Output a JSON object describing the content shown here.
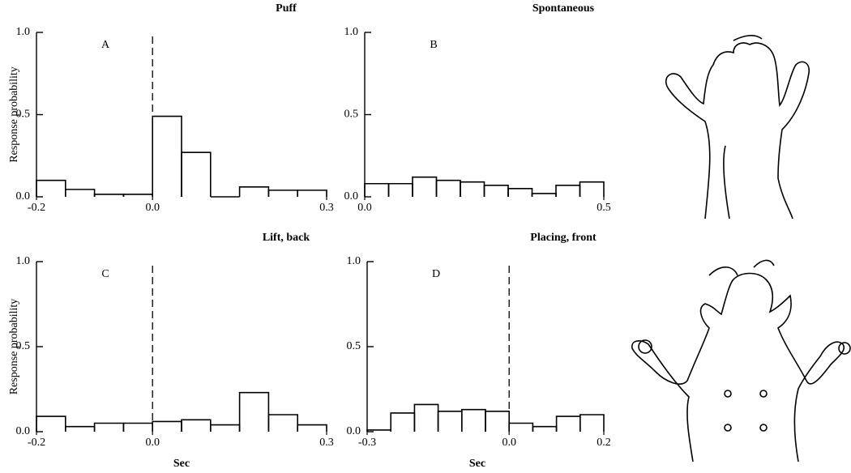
{
  "chart_data": [
    {
      "type": "histogram",
      "title": "Puff",
      "label": "A",
      "ylabel": "Response probability",
      "bins": [
        -0.2,
        -0.15,
        -0.1,
        -0.05,
        0,
        0.05,
        0.1,
        0.15,
        0.2,
        0.25,
        0.3
      ],
      "values": [
        0.1,
        0.045,
        0.015,
        0.015,
        0.49,
        0.27,
        0,
        0.06,
        0.04,
        0.04
      ],
      "color": "#000000",
      "reference_x": 0,
      "xlim": [
        -0.2,
        0.3
      ],
      "xticks": [
        -0.2,
        {
          "value": 0,
          "label": "0.0"
        },
        0.3
      ],
      "ylim": [
        0,
        1
      ],
      "yticks": [
        {
          "value": 0,
          "label": "0.0"
        },
        0.5,
        {
          "value": 1,
          "label": "1.0"
        }
      ]
    },
    {
      "type": "histogram",
      "title": "Spontaneous",
      "label": "B",
      "bins": [
        0,
        0.05,
        0.1,
        0.15,
        0.2,
        0.25,
        0.3,
        0.35,
        0.4,
        0.45,
        0.5
      ],
      "values": [
        0.08,
        0.08,
        0.12,
        0.1,
        0.09,
        0.07,
        0.05,
        0.02,
        0.07,
        0.09
      ],
      "color": "#000000",
      "xlim": [
        0,
        0.5
      ],
      "xticks": [
        {
          "value": 0,
          "label": "0.0"
        },
        0.5
      ],
      "ylim": [
        0,
        1
      ],
      "yticks": [
        {
          "value": 0,
          "label": "0.0"
        },
        0.5,
        {
          "value": 1,
          "label": "1.0"
        }
      ]
    },
    {
      "type": "histogram",
      "title": "Lift, back",
      "label": "C",
      "ylabel": "Response probability",
      "xlabel": "Sec",
      "bins": [
        -0.2,
        -0.15,
        -0.1,
        -0.05,
        0,
        0.05,
        0.1,
        0.15,
        0.2,
        0.25,
        0.3
      ],
      "values": [
        0.09,
        0.03,
        0.05,
        0.05,
        0.06,
        0.07,
        0.04,
        0.23,
        0.1,
        0.04
      ],
      "color": "#000000",
      "reference_x": 0,
      "xlim": [
        -0.2,
        0.3
      ],
      "xticks": [
        -0.2,
        {
          "value": 0,
          "label": "0.0"
        },
        0.3
      ],
      "ylim": [
        0,
        1
      ],
      "yticks": [
        {
          "value": 0,
          "label": "0.0"
        },
        0.5,
        {
          "value": 1,
          "label": "1.0"
        }
      ]
    },
    {
      "type": "histogram",
      "title": "Placing, front",
      "label": "D",
      "xlabel": "Sec",
      "bins": [
        -0.3,
        -0.25,
        -0.2,
        -0.15,
        -0.1,
        -0.05,
        0,
        0.05,
        0.1,
        0.15,
        0.2
      ],
      "values": [
        0.01,
        0.11,
        0.16,
        0.12,
        0.13,
        0.12,
        0.05,
        0.03,
        0.09,
        0.1
      ],
      "color": "#000000",
      "reference_x": 0,
      "xlim": [
        -0.3,
        0.2
      ],
      "xticks": [
        -0.3,
        {
          "value": 0,
          "label": "0.0"
        },
        0.2
      ],
      "ylim": [
        0,
        1
      ],
      "yticks": [
        {
          "value": 0,
          "label": "0.0"
        },
        0.5,
        {
          "value": 1,
          "label": "1.0"
        }
      ]
    }
  ]
}
